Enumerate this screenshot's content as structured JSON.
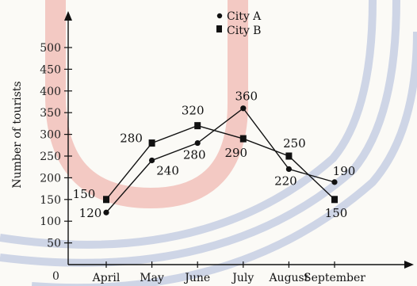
{
  "chart_data": {
    "type": "line",
    "title": "",
    "xlabel": "",
    "ylabel": "Number of tourists",
    "origin_label": "0",
    "categories": [
      "April",
      "May",
      "June",
      "July",
      "August",
      "September"
    ],
    "yticks": [
      50,
      100,
      150,
      200,
      250,
      300,
      350,
      400,
      450,
      500
    ],
    "ylim": [
      0,
      550
    ],
    "legend_position": "top-center",
    "grid": false,
    "series": [
      {
        "name": "City A",
        "marker": "circle",
        "values": [
          120,
          240,
          280,
          360,
          220,
          190
        ],
        "labels": [
          "120",
          "240",
          "280",
          "360",
          "220",
          "190"
        ]
      },
      {
        "name": "City B",
        "marker": "square",
        "values": [
          150,
          280,
          320,
          290,
          250,
          150
        ],
        "labels": [
          "150",
          "280",
          "320",
          "290",
          "250",
          "150"
        ]
      }
    ],
    "colors": {
      "ink": "#111111",
      "background": "#fbfaf6",
      "watermark_red": "#e98f86",
      "watermark_blue": "#a9b6d9"
    }
  }
}
